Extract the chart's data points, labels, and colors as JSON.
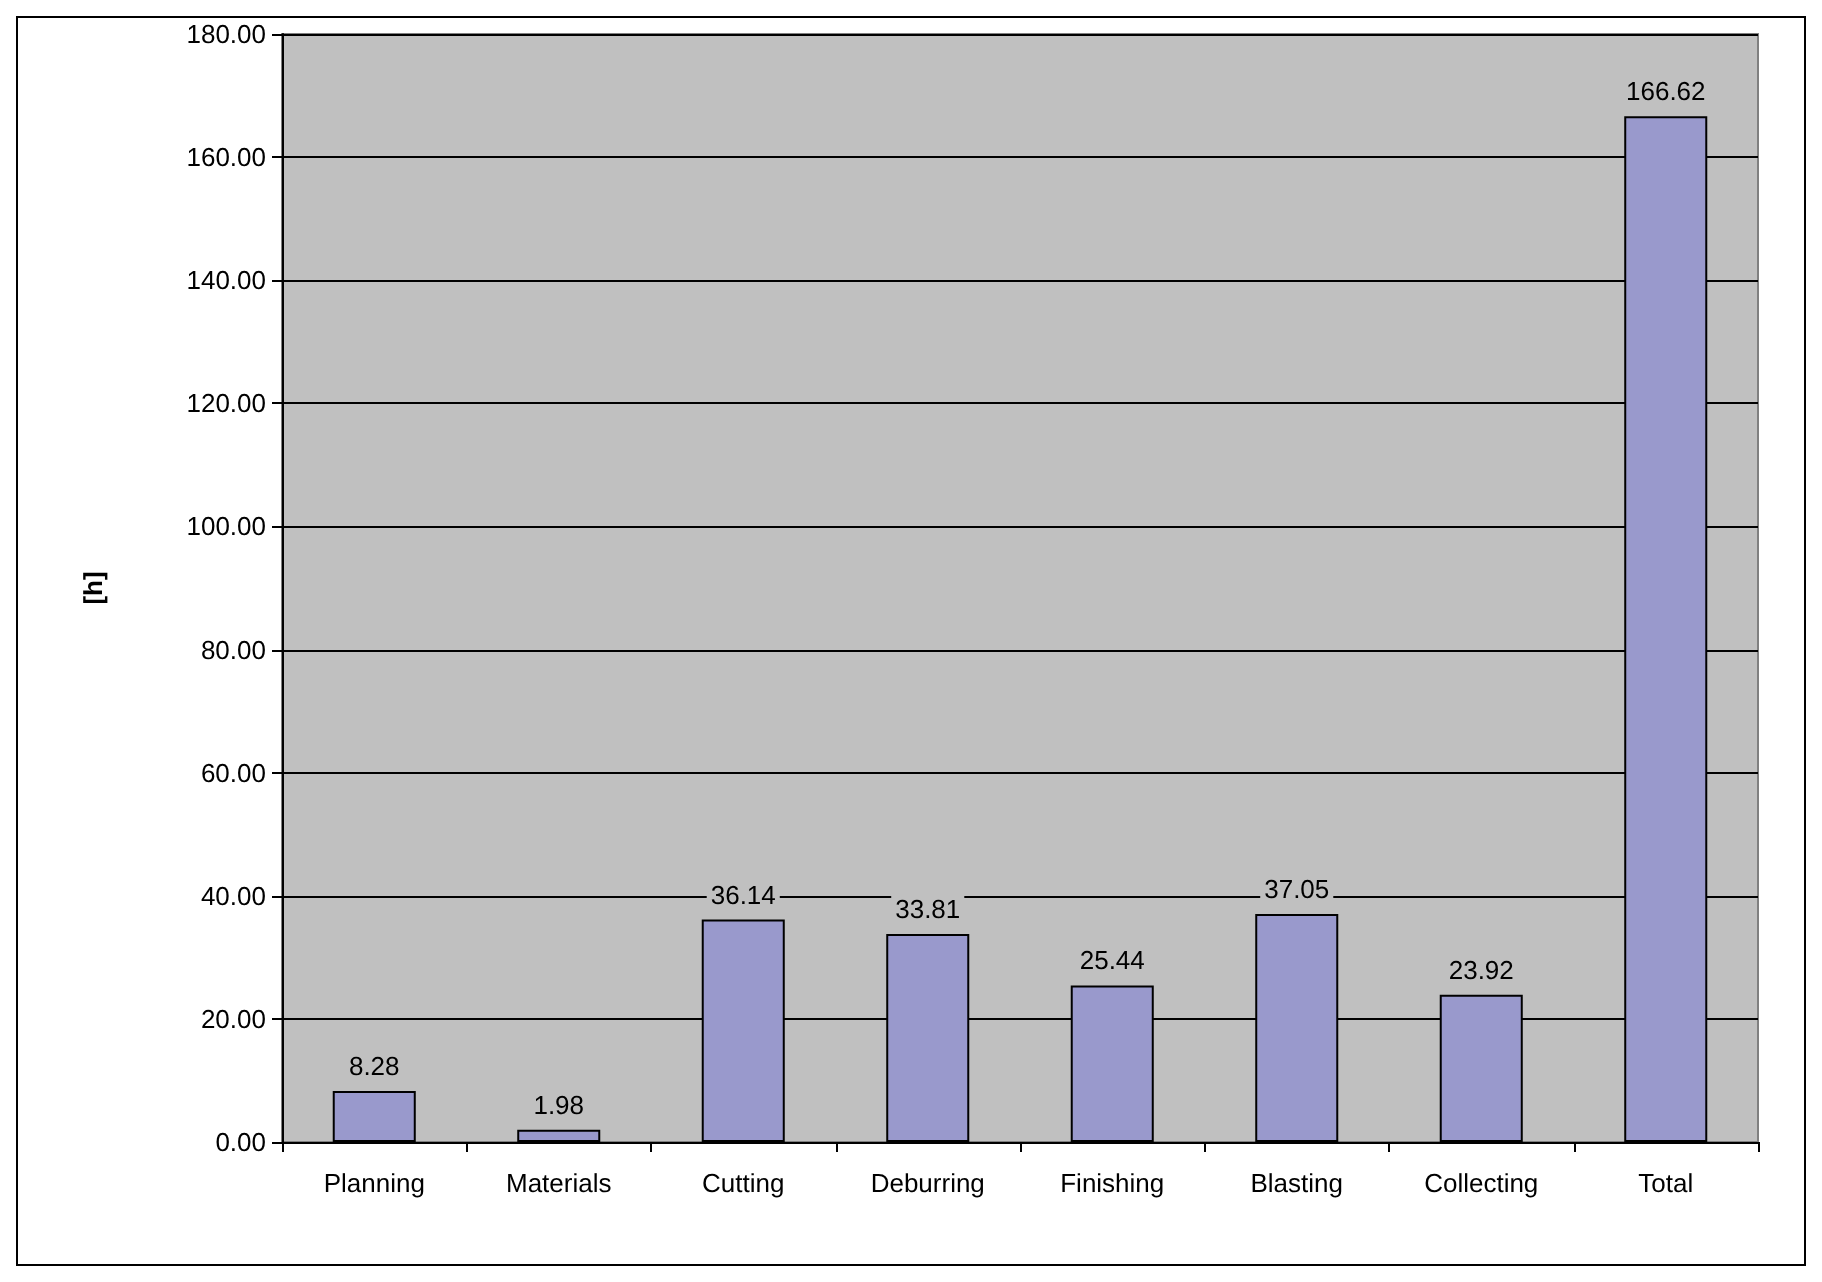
{
  "chart_data": {
    "type": "bar",
    "ylabel": "[h]",
    "categories": [
      "Planning",
      "Materials",
      "Cutting",
      "Deburring",
      "Finishing",
      "Blasting",
      "Collecting",
      "Total"
    ],
    "values": [
      8.28,
      1.98,
      36.14,
      33.81,
      25.44,
      37.05,
      23.92,
      166.62
    ],
    "color": "#9999cc",
    "ylim": [
      0,
      180
    ],
    "yticks": [
      {
        "value": 0,
        "label": "0.00"
      },
      {
        "value": 20,
        "label": "20.00"
      },
      {
        "value": 40,
        "label": "40.00"
      },
      {
        "value": 60,
        "label": "60.00"
      },
      {
        "value": 80,
        "label": "80.00"
      },
      {
        "value": 100,
        "label": "100.00"
      },
      {
        "value": 120,
        "label": "120.00"
      },
      {
        "value": 140,
        "label": "140.00"
      },
      {
        "value": 160,
        "label": "160.00"
      },
      {
        "value": 180,
        "label": "180.00"
      }
    ],
    "grid": "y",
    "data_labels": true
  }
}
